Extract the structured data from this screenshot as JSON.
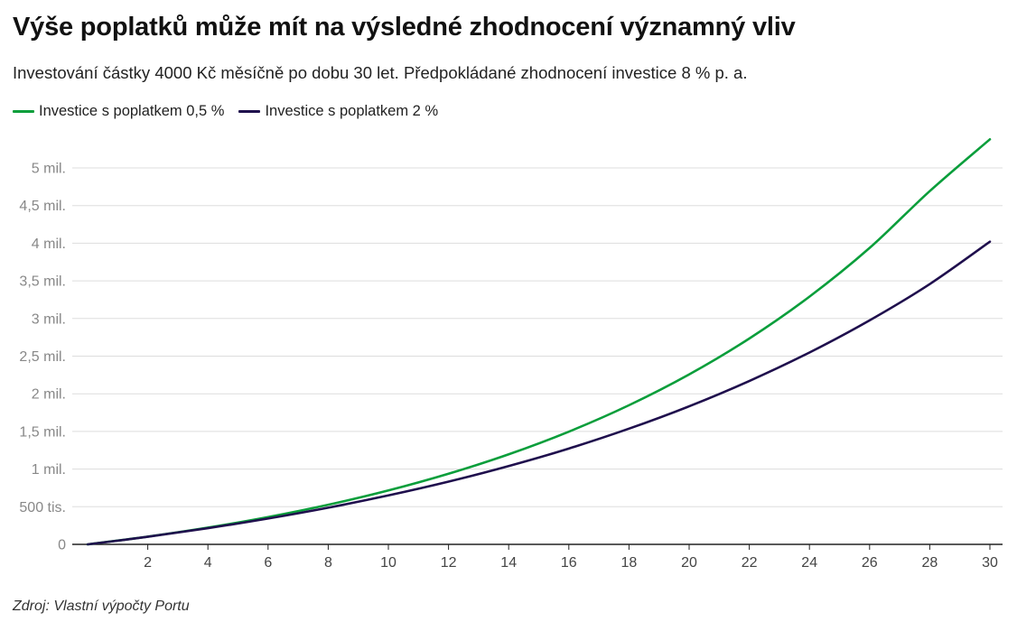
{
  "chart_data": {
    "type": "line",
    "title": "Výše poplatků může mít na výsledné zhodnocení významný vliv",
    "subtitle": "Investování částky 4000 Kč měsíčně po dobu 30 let. Předpokládané zhodnocení investice 8 % p. a.",
    "source": "Zdroj: Vlastní výpočty Portu",
    "x": [
      0,
      2,
      4,
      6,
      8,
      10,
      12,
      14,
      16,
      18,
      20,
      22,
      24,
      26,
      28,
      30
    ],
    "xlim": [
      0,
      30
    ],
    "ylim": [
      0,
      5000000
    ],
    "grid": true,
    "legend_position": "top-left",
    "x_ticks": [
      2,
      4,
      6,
      8,
      10,
      12,
      14,
      16,
      18,
      20,
      22,
      24,
      26,
      28,
      30
    ],
    "y_ticks": [
      {
        "value": 0,
        "label": "0"
      },
      {
        "value": 500000,
        "label": "500 tis."
      },
      {
        "value": 1000000,
        "label": "1 mil."
      },
      {
        "value": 1500000,
        "label": "1,5 mil."
      },
      {
        "value": 2000000,
        "label": "2 mil."
      },
      {
        "value": 2500000,
        "label": "2,5 mil."
      },
      {
        "value": 3000000,
        "label": "3 mil."
      },
      {
        "value": 3500000,
        "label": "3,5 mil."
      },
      {
        "value": 4000000,
        "label": "4 mil."
      },
      {
        "value": 4500000,
        "label": "4,5 mil."
      },
      {
        "value": 5000000,
        "label": "5 mil."
      }
    ],
    "series": [
      {
        "name": "Investice s poplatkem 0,5 %",
        "color": "#0a9e3b",
        "values": [
          0,
          103000,
          223000,
          363000,
          526000,
          716000,
          938000,
          1196000,
          1497000,
          1848000,
          2257000,
          2734000,
          3290000,
          3937000,
          4692000,
          5380000
        ]
      },
      {
        "name": "Investice s poplatkem 2 %",
        "color": "#1f0f4d",
        "values": [
          0,
          101000,
          215000,
          343000,
          487000,
          650000,
          833000,
          1040000,
          1273000,
          1537000,
          1834000,
          2170000,
          2548000,
          2975000,
          3457000,
          4020000
        ]
      }
    ]
  }
}
